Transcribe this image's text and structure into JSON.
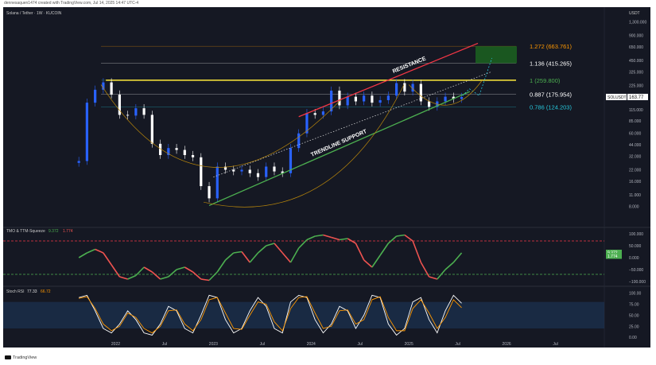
{
  "header": {
    "creator_line": "dennesaquen1474 created with TradingView.com, Jul 14, 2025 14:47 UTC-4"
  },
  "footer": {
    "brand": "TradingView"
  },
  "theme": {
    "background": "#151823",
    "up": "#2962ff",
    "down": "#ffffff",
    "resistance": "#f23645",
    "support": "#4caf50",
    "fib_one": "#ffeb3b",
    "target_box": "#1b5e20"
  },
  "chart_data": [
    {
      "panel": "price",
      "type": "candlestick",
      "title": "Solana / Tether · 1W · KUCOIN",
      "scale": "log",
      "currency_label": "USDT",
      "ylim": [
        5,
        1500
      ],
      "y_ticks": [
        "1,300.000",
        "900.000",
        "650.000",
        "450.000",
        "325.000",
        "225.000",
        "160.000",
        "115.000",
        "85.000",
        "60.000",
        "44.000",
        "32.000",
        "22.000",
        "16.000",
        "11.000",
        "8.000"
      ],
      "x_ticks": [
        "2022",
        "Jul",
        "2023",
        "Jul",
        "2024",
        "Jul",
        "2025",
        "Jul",
        "2026",
        "Jul"
      ],
      "last_price": {
        "symbol": "SOLUSDT",
        "value": "163.77"
      },
      "series_closes": [
        {
          "date": "2021-08",
          "value": 28
        },
        {
          "date": "2021-09",
          "value": 140
        },
        {
          "date": "2021-10",
          "value": 200
        },
        {
          "date": "2021-11",
          "value": 245
        },
        {
          "date": "2021-12",
          "value": 175
        },
        {
          "date": "2022-01",
          "value": 100
        },
        {
          "date": "2022-02",
          "value": 98
        },
        {
          "date": "2022-03",
          "value": 120
        },
        {
          "date": "2022-04",
          "value": 100
        },
        {
          "date": "2022-05",
          "value": 45
        },
        {
          "date": "2022-06",
          "value": 33
        },
        {
          "date": "2022-07",
          "value": 40
        },
        {
          "date": "2022-08",
          "value": 38
        },
        {
          "date": "2022-09",
          "value": 33
        },
        {
          "date": "2022-10",
          "value": 31
        },
        {
          "date": "2022-11",
          "value": 14
        },
        {
          "date": "2022-12",
          "value": 10
        },
        {
          "date": "2023-01",
          "value": 24
        },
        {
          "date": "2023-02",
          "value": 22
        },
        {
          "date": "2023-03",
          "value": 21
        },
        {
          "date": "2023-04",
          "value": 22
        },
        {
          "date": "2023-05",
          "value": 20
        },
        {
          "date": "2023-06",
          "value": 18
        },
        {
          "date": "2023-07",
          "value": 24
        },
        {
          "date": "2023-08",
          "value": 21
        },
        {
          "date": "2023-09",
          "value": 20
        },
        {
          "date": "2023-10",
          "value": 40
        },
        {
          "date": "2023-11",
          "value": 60
        },
        {
          "date": "2023-12",
          "value": 105
        },
        {
          "date": "2024-01",
          "value": 100
        },
        {
          "date": "2024-02",
          "value": 110
        },
        {
          "date": "2024-03",
          "value": 195
        },
        {
          "date": "2024-04",
          "value": 130
        },
        {
          "date": "2024-05",
          "value": 165
        },
        {
          "date": "2024-06",
          "value": 145
        },
        {
          "date": "2024-07",
          "value": 170
        },
        {
          "date": "2024-08",
          "value": 140
        },
        {
          "date": "2024-09",
          "value": 150
        },
        {
          "date": "2024-10",
          "value": 170
        },
        {
          "date": "2024-11",
          "value": 240
        },
        {
          "date": "2024-12",
          "value": 190
        },
        {
          "date": "2025-01",
          "value": 235
        },
        {
          "date": "2025-02",
          "value": 145
        },
        {
          "date": "2025-03",
          "value": 125
        },
        {
          "date": "2025-04",
          "value": 145
        },
        {
          "date": "2025-05",
          "value": 165
        },
        {
          "date": "2025-06",
          "value": 155
        },
        {
          "date": "2025-07",
          "value": 163.77
        }
      ],
      "fib_levels": [
        {
          "label": "1.272 (663.761)",
          "value": 663.761,
          "color": "#ff9800"
        },
        {
          "label": "1.136 (415.265)",
          "value": 415.265,
          "color": "#ffffff"
        },
        {
          "label": "1 (259.800)",
          "value": 259.8,
          "color": "#4caf50"
        },
        {
          "label": "0.887 (175.954)",
          "value": 175.954,
          "color": "#ffffff"
        },
        {
          "label": "0.786 (124.203)",
          "value": 124.203,
          "color": "#26c6da"
        }
      ],
      "annotations": [
        {
          "text": "RESISTANCE",
          "kind": "line",
          "from": {
            "date": "2023-11",
            "value": 95
          },
          "to": {
            "date": "2025-09",
            "value": 720
          }
        },
        {
          "text": "TRENDLINE SUPPORT",
          "kind": "line",
          "from": {
            "date": "2022-12",
            "value": 8.2
          },
          "to": {
            "date": "2025-08",
            "value": 190
          }
        },
        {
          "text": "",
          "kind": "horizontal_resistance",
          "value": 260
        }
      ]
    },
    {
      "panel": "oscillator",
      "type": "line",
      "title": "TMO & TTM-Squeeze",
      "values_label": [
        "9.372",
        "1.774"
      ],
      "y_ticks": [
        "100.000",
        "50.000",
        "0.000",
        "−50.000",
        "−100.000"
      ],
      "ylim": [
        -110,
        110
      ],
      "threshold_upper": 70,
      "threshold_lower": -70,
      "series": [
        {
          "values": [
            0,
            20,
            35,
            20,
            -30,
            -80,
            -90,
            -75,
            -40,
            -60,
            -90,
            -80,
            -50,
            -40,
            -60,
            -90,
            -95,
            -60,
            -10,
            20,
            25,
            -20,
            20,
            50,
            60,
            20,
            -20,
            40,
            75,
            90,
            95,
            85,
            75,
            80,
            60,
            -10,
            -40,
            10,
            60,
            90,
            95,
            70,
            -20,
            -80,
            -90,
            -50,
            -20,
            20
          ]
        }
      ]
    },
    {
      "panel": "stoch_rsi",
      "type": "line",
      "title": "Stoch RSI",
      "values_label": [
        "77.33",
        "66.72"
      ],
      "y_ticks": [
        "100.00",
        "75.00",
        "50.00",
        "25.00",
        "0.00"
      ],
      "ylim": [
        -5,
        110
      ],
      "band": [
        20,
        80
      ],
      "series": [
        {
          "name": "K",
          "values": [
            90,
            95,
            60,
            20,
            10,
            30,
            60,
            40,
            10,
            5,
            30,
            70,
            60,
            20,
            10,
            50,
            95,
            90,
            40,
            10,
            20,
            60,
            90,
            70,
            20,
            10,
            80,
            95,
            90,
            40,
            10,
            30,
            70,
            60,
            20,
            50,
            95,
            90,
            30,
            5,
            20,
            80,
            90,
            40,
            10,
            60,
            95,
            77
          ]
        },
        {
          "name": "D",
          "values": [
            88,
            92,
            65,
            30,
            15,
            25,
            55,
            45,
            20,
            10,
            25,
            60,
            62,
            30,
            15,
            40,
            85,
            90,
            55,
            20,
            18,
            50,
            80,
            75,
            35,
            15,
            65,
            90,
            92,
            55,
            20,
            25,
            60,
            62,
            30,
            40,
            85,
            92,
            45,
            15,
            15,
            65,
            85,
            55,
            20,
            45,
            85,
            67
          ]
        }
      ]
    }
  ]
}
